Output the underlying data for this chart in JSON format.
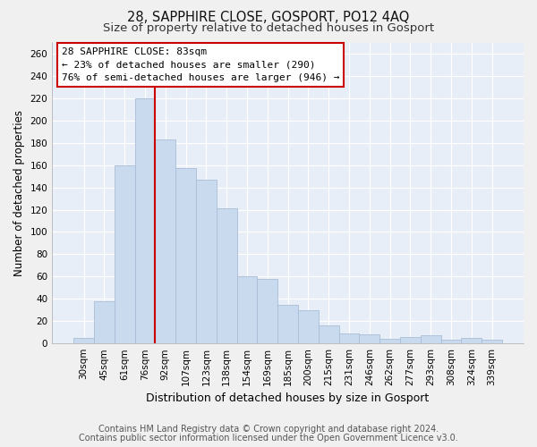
{
  "title": "28, SAPPHIRE CLOSE, GOSPORT, PO12 4AQ",
  "subtitle": "Size of property relative to detached houses in Gosport",
  "xlabel": "Distribution of detached houses by size in Gosport",
  "ylabel": "Number of detached properties",
  "bar_labels": [
    "30sqm",
    "45sqm",
    "61sqm",
    "76sqm",
    "92sqm",
    "107sqm",
    "123sqm",
    "138sqm",
    "154sqm",
    "169sqm",
    "185sqm",
    "200sqm",
    "215sqm",
    "231sqm",
    "246sqm",
    "262sqm",
    "277sqm",
    "293sqm",
    "308sqm",
    "324sqm",
    "339sqm"
  ],
  "bar_values": [
    5,
    38,
    160,
    220,
    183,
    157,
    147,
    121,
    60,
    58,
    35,
    30,
    16,
    9,
    8,
    4,
    6,
    7,
    3,
    5,
    3
  ],
  "bar_color": "#c9d9ee",
  "bar_edge_color": "#a8bdd6",
  "vline_x": 3.5,
  "vline_color": "#cc0000",
  "annotation_title": "28 SAPPHIRE CLOSE: 83sqm",
  "annotation_line1": "← 23% of detached houses are smaller (290)",
  "annotation_line2": "76% of semi-detached houses are larger (946) →",
  "annotation_box_facecolor": "#ffffff",
  "annotation_box_edgecolor": "#cc0000",
  "footnote1": "Contains HM Land Registry data © Crown copyright and database right 2024.",
  "footnote2": "Contains public sector information licensed under the Open Government Licence v3.0.",
  "ylim": [
    0,
    270
  ],
  "yticks": [
    0,
    20,
    40,
    60,
    80,
    100,
    120,
    140,
    160,
    180,
    200,
    220,
    240,
    260
  ],
  "plot_bg_color": "#e8eef7",
  "fig_bg_color": "#f0f0f0",
  "grid_color": "#ffffff",
  "title_fontsize": 10.5,
  "subtitle_fontsize": 9.5,
  "xlabel_fontsize": 9,
  "ylabel_fontsize": 8.5,
  "tick_fontsize": 7.5,
  "annotation_fontsize": 8,
  "footnote_fontsize": 7
}
